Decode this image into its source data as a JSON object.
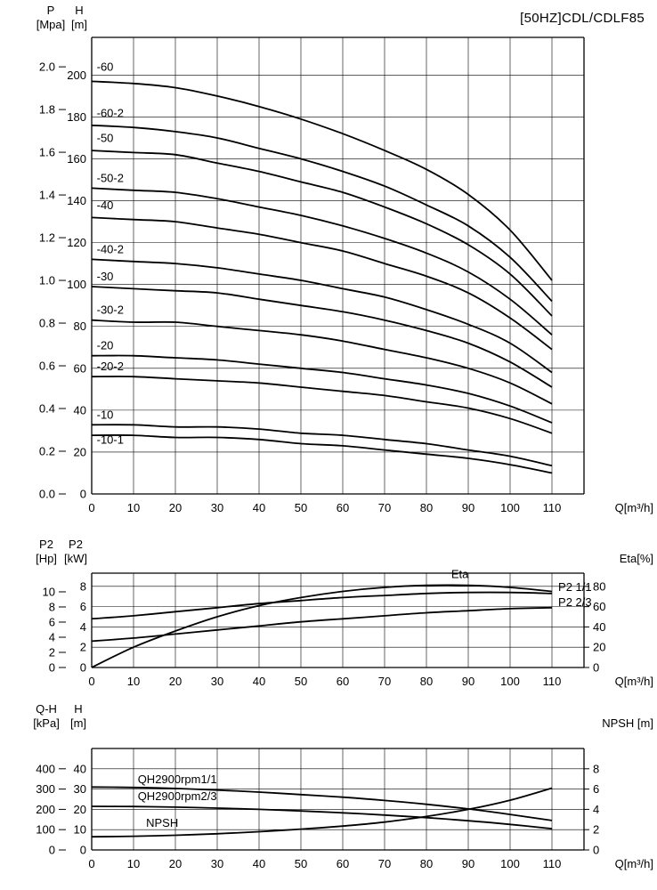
{
  "header": {
    "title": "[50HZ]CDL/CDLF85"
  },
  "chart_data": [
    {
      "id": "main-qh",
      "type": "line",
      "x_axis": {
        "label": "Q[m³/h]",
        "ticks": [
          0,
          10,
          20,
          30,
          40,
          50,
          60,
          70,
          80,
          90,
          100,
          110
        ]
      },
      "axes": {
        "left_primary": {
          "name": "P",
          "unit": "[Mpa]",
          "scale": "mpa",
          "ticks": [
            "0.0",
            "0.2",
            "0.4",
            "0.6",
            "0.8",
            "1.0",
            "1.2",
            "1.4",
            "1.6",
            "1.8",
            "2.0"
          ]
        },
        "left_secondary": {
          "name": "H",
          "unit": "[m]",
          "scale": "m",
          "ticks": [
            0,
            20,
            40,
            60,
            80,
            100,
            120,
            140,
            160,
            180,
            200
          ]
        },
        "right": null
      },
      "series": [
        {
          "name": "-60",
          "scale": "m",
          "label": {
            "q": 1.2,
            "v": 202,
            "anchor": "start"
          },
          "x": [
            0,
            10,
            20,
            30,
            40,
            50,
            60,
            70,
            80,
            90,
            100,
            110
          ],
          "y": [
            197,
            196,
            194,
            190,
            185,
            179,
            172,
            164,
            155,
            143,
            126,
            102
          ]
        },
        {
          "name": "-60-2",
          "scale": "m",
          "label": {
            "q": 1.2,
            "v": 180,
            "anchor": "start"
          },
          "x": [
            0,
            10,
            20,
            30,
            40,
            50,
            60,
            70,
            80,
            90,
            100,
            110
          ],
          "y": [
            176,
            175,
            173,
            170,
            165,
            160,
            154,
            147,
            138,
            128,
            113,
            92
          ]
        },
        {
          "name": "-50",
          "scale": "m",
          "label": {
            "q": 1.2,
            "v": 168,
            "anchor": "start"
          },
          "x": [
            0,
            10,
            20,
            30,
            40,
            50,
            60,
            70,
            80,
            90,
            100,
            110
          ],
          "y": [
            164,
            163,
            162,
            158,
            154,
            149,
            144,
            137,
            129,
            119,
            105,
            85
          ]
        },
        {
          "name": "-50-2",
          "scale": "m",
          "label": {
            "q": 1.2,
            "v": 149,
            "anchor": "start"
          },
          "x": [
            0,
            10,
            20,
            30,
            40,
            50,
            60,
            70,
            80,
            90,
            100,
            110
          ],
          "y": [
            146,
            145,
            144,
            141,
            137,
            133,
            128,
            122,
            115,
            106,
            93,
            76
          ]
        },
        {
          "name": "-40",
          "scale": "m",
          "label": {
            "q": 1.2,
            "v": 136,
            "anchor": "start"
          },
          "x": [
            0,
            10,
            20,
            30,
            40,
            50,
            60,
            70,
            80,
            90,
            100,
            110
          ],
          "y": [
            132,
            131,
            130,
            127,
            124,
            120,
            116,
            110,
            104,
            96,
            84,
            69
          ]
        },
        {
          "name": "-40-2",
          "scale": "m",
          "label": {
            "q": 1.2,
            "v": 115,
            "anchor": "start"
          },
          "x": [
            0,
            10,
            20,
            30,
            40,
            50,
            60,
            70,
            80,
            90,
            100,
            110
          ],
          "y": [
            112,
            111,
            110,
            108,
            105,
            102,
            98,
            94,
            88,
            81,
            72,
            58
          ]
        },
        {
          "name": "-30",
          "scale": "m",
          "label": {
            "q": 1.2,
            "v": 102,
            "anchor": "start"
          },
          "x": [
            0,
            10,
            20,
            30,
            40,
            50,
            60,
            70,
            80,
            90,
            100,
            110
          ],
          "y": [
            99,
            98,
            97,
            96,
            93,
            90,
            87,
            83,
            78,
            72,
            63,
            51
          ]
        },
        {
          "name": "-30-2",
          "scale": "m",
          "label": {
            "q": 1.2,
            "v": 86,
            "anchor": "start"
          },
          "x": [
            0,
            10,
            20,
            30,
            40,
            50,
            60,
            70,
            80,
            90,
            100,
            110
          ],
          "y": [
            83,
            82,
            82,
            80,
            78,
            76,
            73,
            69,
            65,
            60,
            53,
            43
          ]
        },
        {
          "name": "-20",
          "scale": "m",
          "label": {
            "q": 1.2,
            "v": 69,
            "anchor": "start"
          },
          "x": [
            0,
            10,
            20,
            30,
            40,
            50,
            60,
            70,
            80,
            90,
            100,
            110
          ],
          "y": [
            66,
            66,
            65,
            64,
            62,
            60,
            58,
            55,
            52,
            48,
            42,
            34
          ]
        },
        {
          "name": "-20-2",
          "scale": "m",
          "label": {
            "q": 1.2,
            "v": 59,
            "anchor": "start"
          },
          "x": [
            0,
            10,
            20,
            30,
            40,
            50,
            60,
            70,
            80,
            90,
            100,
            110
          ],
          "y": [
            56,
            56,
            55,
            54,
            53,
            51,
            49,
            47,
            44,
            41,
            36,
            29
          ]
        },
        {
          "name": "-10",
          "scale": "m",
          "label": {
            "q": 1.2,
            "v": 36,
            "anchor": "start"
          },
          "x": [
            0,
            10,
            20,
            30,
            40,
            50,
            60,
            70,
            80,
            90,
            100,
            110
          ],
          "y": [
            33,
            33,
            32,
            32,
            31,
            29,
            28,
            26,
            24,
            21,
            18,
            13.5
          ]
        },
        {
          "name": "-10-1",
          "scale": "m",
          "label": {
            "q": 1.2,
            "v": 24,
            "anchor": "start"
          },
          "x": [
            0,
            10,
            20,
            30,
            40,
            50,
            60,
            70,
            80,
            90,
            100,
            110
          ],
          "y": [
            28,
            28,
            27,
            27,
            26,
            24,
            23,
            21,
            19,
            17,
            14,
            10
          ]
        }
      ]
    },
    {
      "id": "power-eta",
      "type": "line",
      "x_axis": {
        "label": "Q[m³/h]",
        "ticks": [
          0,
          10,
          20,
          30,
          40,
          50,
          60,
          70,
          80,
          90,
          100,
          110
        ]
      },
      "axes": {
        "left_primary": {
          "name": "P2",
          "unit": "[Hp]",
          "scale": "hp",
          "ticks": [
            0,
            2,
            4,
            6,
            8,
            10
          ]
        },
        "left_secondary": {
          "name": "P2",
          "unit": "[kW]",
          "scale": "kw",
          "ticks": [
            0,
            2,
            4,
            6,
            8
          ]
        },
        "right": {
          "name": "Eta[%]",
          "scale": "eta",
          "ticks": [
            0,
            20,
            40,
            60,
            80
          ]
        }
      },
      "series": [
        {
          "name": "P2 1/1",
          "scale": "kw",
          "label": {
            "q": 111.5,
            "v": 7.55,
            "anchor": "start"
          },
          "x": [
            0,
            10,
            20,
            30,
            40,
            50,
            60,
            70,
            80,
            90,
            100,
            110
          ],
          "y": [
            4.8,
            5.1,
            5.5,
            5.9,
            6.3,
            6.6,
            6.9,
            7.1,
            7.3,
            7.4,
            7.4,
            7.3
          ]
        },
        {
          "name": "P2 2/3",
          "scale": "kw",
          "label": {
            "q": 111.5,
            "v": 6.05,
            "anchor": "start"
          },
          "x": [
            0,
            10,
            20,
            30,
            40,
            50,
            60,
            70,
            80,
            90,
            100,
            110
          ],
          "y": [
            2.6,
            2.9,
            3.3,
            3.7,
            4.1,
            4.5,
            4.8,
            5.1,
            5.4,
            5.6,
            5.8,
            5.9
          ]
        },
        {
          "name": "Eta",
          "scale": "eta",
          "label": {
            "q": 88,
            "v": 88,
            "anchor": "middle"
          },
          "x": [
            0,
            10,
            20,
            30,
            40,
            50,
            60,
            70,
            80,
            90,
            100,
            110
          ],
          "y": [
            0,
            20,
            36,
            50,
            61,
            69,
            75,
            79,
            81,
            81,
            79,
            75
          ]
        }
      ]
    },
    {
      "id": "qh-npsh",
      "type": "line",
      "x_axis": {
        "label": "Q[m³/h]",
        "ticks": [
          0,
          10,
          20,
          30,
          40,
          50,
          60,
          70,
          80,
          90,
          100,
          110
        ]
      },
      "axes": {
        "left_primary": {
          "name": "Q-H",
          "unit": "[kPa]",
          "scale": "kpa",
          "ticks": [
            0,
            100,
            200,
            300,
            400
          ]
        },
        "left_secondary": {
          "name": "H",
          "unit": "[m]",
          "scale": "m",
          "ticks": [
            0,
            10,
            20,
            30,
            40
          ]
        },
        "right": {
          "name": "NPSH [m]",
          "scale": "npsh",
          "ticks": [
            0,
            2,
            4,
            6,
            8
          ]
        }
      },
      "series": [
        {
          "name": "QH2900rpm1/1",
          "scale": "m",
          "label": {
            "q": 11,
            "v": 33,
            "anchor": "start"
          },
          "x": [
            0,
            10,
            20,
            30,
            40,
            50,
            60,
            70,
            80,
            90,
            100,
            110
          ],
          "y": [
            31,
            30.8,
            30.3,
            29.5,
            28.5,
            27.3,
            26,
            24.4,
            22.5,
            20.2,
            17.5,
            14.5
          ]
        },
        {
          "name": "QH2900rpm2/3",
          "scale": "m",
          "label": {
            "q": 11,
            "v": 24.5,
            "anchor": "start"
          },
          "x": [
            0,
            10,
            20,
            30,
            40,
            50,
            60,
            70,
            80,
            90,
            100,
            110
          ],
          "y": [
            21.5,
            21.4,
            21.1,
            20.6,
            20,
            19.2,
            18.3,
            17.2,
            15.9,
            14.4,
            12.6,
            10.5
          ]
        },
        {
          "name": "NPSH",
          "scale": "npsh",
          "label": {
            "q": 13,
            "v": 2.3,
            "anchor": "start"
          },
          "x": [
            0,
            10,
            20,
            30,
            40,
            50,
            60,
            70,
            80,
            90,
            100,
            110
          ],
          "y": [
            1.3,
            1.35,
            1.45,
            1.6,
            1.8,
            2.05,
            2.35,
            2.75,
            3.3,
            4.0,
            4.9,
            6.1
          ]
        }
      ]
    }
  ]
}
